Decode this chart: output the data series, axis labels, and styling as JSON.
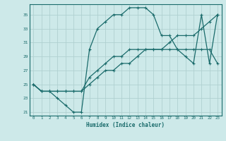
{
  "xlabel": "Humidex (Indice chaleur)",
  "background_color": "#cde9e9",
  "grid_color": "#b0d0d0",
  "line_color": "#1a6b6b",
  "xlim": [
    -0.5,
    23.5
  ],
  "ylim": [
    20.5,
    36.5
  ],
  "xticks": [
    0,
    1,
    2,
    3,
    4,
    5,
    6,
    7,
    8,
    9,
    10,
    11,
    12,
    13,
    14,
    15,
    16,
    17,
    18,
    19,
    20,
    21,
    22,
    23
  ],
  "yticks": [
    21,
    23,
    25,
    27,
    29,
    31,
    33,
    35
  ],
  "series1_x": [
    0,
    1,
    2,
    3,
    4,
    5,
    6,
    7,
    8,
    9,
    10,
    11,
    12,
    13,
    14,
    15,
    16,
    17,
    18,
    19,
    20,
    21,
    22,
    23
  ],
  "series1_y": [
    25,
    24,
    24,
    23,
    22,
    21,
    21,
    30,
    33,
    34,
    35,
    35,
    36,
    36,
    36,
    35,
    32,
    32,
    30,
    29,
    28,
    35,
    28,
    35
  ],
  "series2_x": [
    0,
    1,
    2,
    3,
    4,
    5,
    6,
    7,
    8,
    9,
    10,
    11,
    12,
    13,
    14,
    15,
    16,
    17,
    18,
    19,
    20,
    21,
    22,
    23
  ],
  "series2_y": [
    25,
    24,
    24,
    24,
    24,
    24,
    24,
    25,
    26,
    27,
    27,
    28,
    28,
    29,
    30,
    30,
    30,
    31,
    32,
    32,
    32,
    33,
    34,
    35
  ],
  "series3_x": [
    0,
    1,
    2,
    3,
    4,
    5,
    6,
    7,
    8,
    9,
    10,
    11,
    12,
    13,
    14,
    15,
    16,
    17,
    18,
    19,
    20,
    21,
    22,
    23
  ],
  "series3_y": [
    25,
    24,
    24,
    24,
    24,
    24,
    24,
    26,
    27,
    28,
    29,
    29,
    30,
    30,
    30,
    30,
    30,
    30,
    30,
    30,
    30,
    30,
    30,
    28
  ]
}
